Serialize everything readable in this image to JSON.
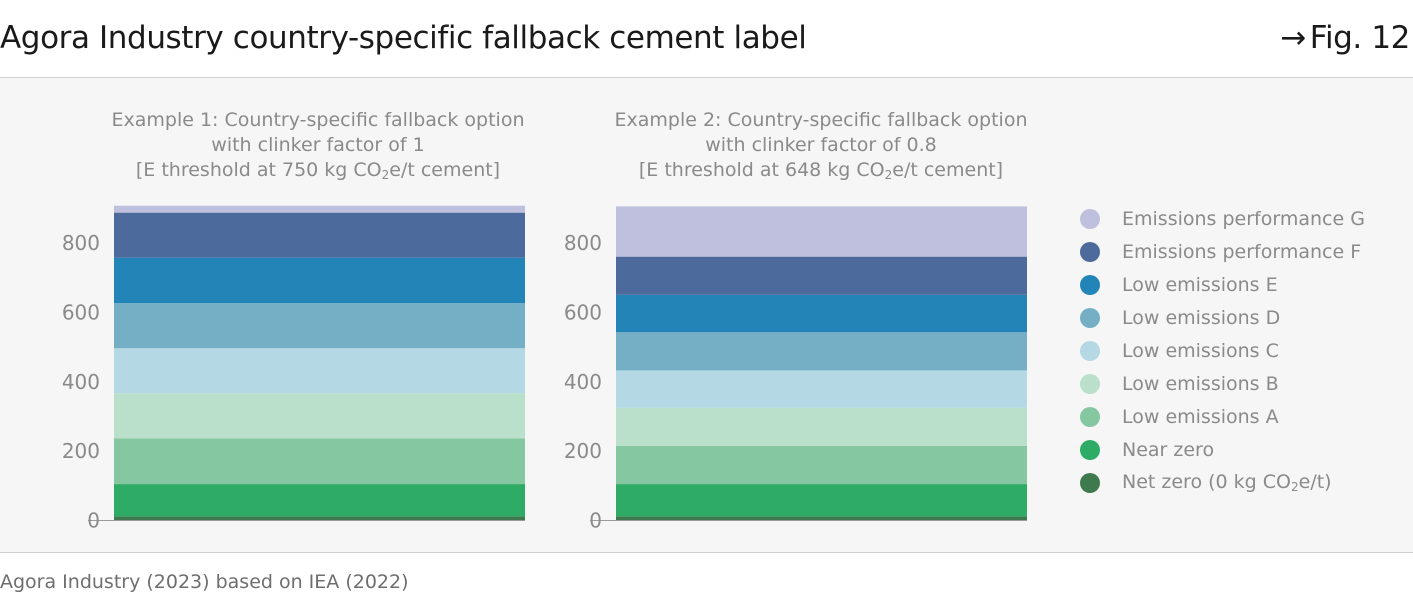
{
  "header": {
    "title": "Agora Industry country-specific fallback cement label",
    "fig_arrow": "→",
    "fig_label": "Fig. 12"
  },
  "source": "Agora Industry (2023) based on IEA (2022)",
  "legend": [
    {
      "label": "Emissions performance G",
      "color": "#bfc0dd"
    },
    {
      "label": "Emissions performance F",
      "color": "#4c6a9b"
    },
    {
      "label": "Low emissions E",
      "color": "#2384b7"
    },
    {
      "label": "Low emissions D",
      "color": "#74afc6"
    },
    {
      "label": "Low emissions C",
      "color": "#b4d8e4"
    },
    {
      "label": "Low emissions B",
      "color": "#badfca"
    },
    {
      "label": "Low emissions A",
      "color": "#85c7a0"
    },
    {
      "label": "Near zero",
      "color": "#2eab65"
    },
    {
      "label_pre": "Net zero (0 kg CO",
      "label_sub": "2",
      "label_post": "e/t)",
      "color": "#3f7a4f"
    }
  ],
  "chart_data": [
    {
      "type": "bar",
      "stacked": true,
      "title_lines": [
        "Example 1: Country-specific fallback option",
        "with clinker factor of 1"
      ],
      "title_threshold": {
        "pre": "[E threshold at 750 kg CO",
        "sub": "2",
        "post": "e/t cement]"
      },
      "ylim": [
        0,
        910
      ],
      "yticks": [
        0,
        200,
        400,
        600,
        800
      ],
      "categories": [
        "Example 1"
      ],
      "series": [
        {
          "name": "Net zero (0 kg CO2e/t)",
          "values": [
            12
          ],
          "color": "#3f7a4f"
        },
        {
          "name": "Near zero",
          "values": [
            93
          ],
          "color": "#2eab65"
        },
        {
          "name": "Low emissions A",
          "values": [
            132
          ],
          "color": "#85c7a0"
        },
        {
          "name": "Low emissions B",
          "values": [
            130
          ],
          "color": "#badfca"
        },
        {
          "name": "Low emissions C",
          "values": [
            130
          ],
          "color": "#b4d8e4"
        },
        {
          "name": "Low emissions D",
          "values": [
            130
          ],
          "color": "#74afc6"
        },
        {
          "name": "Low emissions E",
          "values": [
            131
          ],
          "color": "#2384b7"
        },
        {
          "name": "Emissions performance F",
          "values": [
            130
          ],
          "color": "#4c6a9b"
        },
        {
          "name": "Emissions performance G",
          "values": [
            20
          ],
          "color": "#bfc0dd"
        }
      ]
    },
    {
      "type": "bar",
      "stacked": true,
      "title_lines": [
        "Example 2: Country-specific fallback option",
        "with clinker factor of 0.8"
      ],
      "title_threshold": {
        "pre": "[E threshold at 648 kg CO",
        "sub": "2",
        "post": "e/t cement]"
      },
      "ylim": [
        0,
        910
      ],
      "yticks": [
        0,
        200,
        400,
        600,
        800
      ],
      "categories": [
        "Example 2"
      ],
      "series": [
        {
          "name": "Net zero (0 kg CO2e/t)",
          "values": [
            12
          ],
          "color": "#3f7a4f"
        },
        {
          "name": "Near zero",
          "values": [
            93
          ],
          "color": "#2eab65"
        },
        {
          "name": "Low emissions A",
          "values": [
            110
          ],
          "color": "#85c7a0"
        },
        {
          "name": "Low emissions B",
          "values": [
            110
          ],
          "color": "#badfca"
        },
        {
          "name": "Low emissions C",
          "values": [
            108
          ],
          "color": "#b4d8e4"
        },
        {
          "name": "Low emissions D",
          "values": [
            110
          ],
          "color": "#74afc6"
        },
        {
          "name": "Low emissions E",
          "values": [
            108
          ],
          "color": "#2384b7"
        },
        {
          "name": "Emissions performance F",
          "values": [
            110
          ],
          "color": "#4c6a9b"
        },
        {
          "name": "Emissions performance G",
          "values": [
            145
          ],
          "color": "#bfc0dd"
        }
      ]
    }
  ]
}
